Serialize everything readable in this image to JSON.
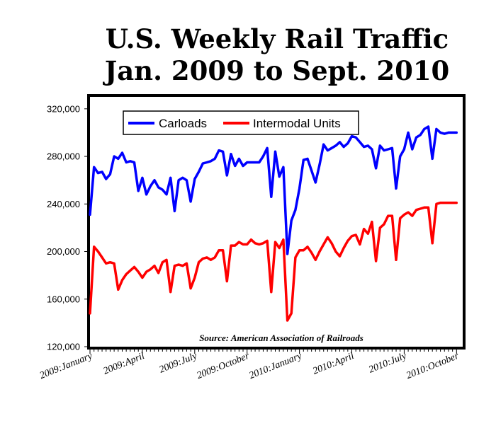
{
  "chart_data": {
    "type": "line",
    "title_lines": [
      "U.S. Weekly Rail Traffic",
      "Jan. 2009 to Sept. 2010"
    ],
    "source": "Source: American Association of Railroads",
    "ylim": [
      120000,
      330000
    ],
    "yticks": [
      120000,
      160000,
      200000,
      240000,
      280000,
      320000
    ],
    "ytick_labels": [
      "120,000",
      "160,000",
      "200,000",
      "240,000",
      "280,000",
      "320,000"
    ],
    "xlim": [
      0,
      92
    ],
    "xticks": [
      0,
      13,
      26,
      39,
      52,
      65,
      78,
      91
    ],
    "xtick_labels": [
      "2009:January",
      "2009:April",
      "2009:July",
      "2009:October",
      "2010:January",
      "2010:April",
      "2010:July",
      "2010:October"
    ],
    "legend_position": "top-left",
    "grid": false,
    "series": [
      {
        "name": "Carloads",
        "color": "#0000ff",
        "x": [
          0,
          1,
          2,
          3,
          4,
          5,
          6,
          7,
          8,
          9,
          10,
          11,
          12,
          13,
          14,
          15,
          16,
          17,
          18,
          19,
          20,
          21,
          22,
          23,
          24,
          25,
          26,
          27,
          28,
          29,
          30,
          31,
          32,
          33,
          34,
          35,
          36,
          37,
          38,
          39,
          40,
          41,
          42,
          43,
          44,
          45,
          46,
          47,
          48,
          49,
          50,
          51,
          52,
          53,
          54,
          55,
          56,
          57,
          58,
          59,
          60,
          61,
          62,
          63,
          64,
          65,
          66,
          67,
          68,
          69,
          70,
          71,
          72,
          73,
          74,
          75,
          76,
          77,
          78,
          79,
          80,
          81,
          82,
          83,
          84,
          85,
          86,
          87,
          88,
          89,
          90,
          91
        ],
        "values": [
          231000,
          271000,
          266000,
          267000,
          261000,
          265000,
          280000,
          278000,
          283000,
          275000,
          276000,
          275000,
          251000,
          262000,
          248000,
          255000,
          260000,
          254000,
          252000,
          248000,
          262000,
          234000,
          260000,
          262000,
          260000,
          242000,
          261000,
          267000,
          274000,
          275000,
          276000,
          278000,
          285000,
          284000,
          264000,
          282000,
          272000,
          278000,
          272000,
          275000,
          275000,
          275000,
          275000,
          280000,
          287000,
          246000,
          284000,
          263000,
          271000,
          198000,
          226000,
          235000,
          253000,
          277000,
          278000,
          268000,
          258000,
          273000,
          290000,
          285000,
          287000,
          289000,
          292000,
          288000,
          291000,
          297000,
          296000,
          292000,
          288000,
          289000,
          286000,
          270000,
          289000,
          285000,
          286000,
          287000,
          253000,
          280000,
          286000,
          300000,
          286000,
          296000,
          298000,
          303000,
          305000,
          278000,
          303000,
          300000,
          299000,
          300000,
          300000,
          300000
        ]
      },
      {
        "name": "Intermodal Units",
        "color": "#ff0000",
        "x": [
          0,
          1,
          2,
          3,
          4,
          5,
          6,
          7,
          8,
          9,
          10,
          11,
          12,
          13,
          14,
          15,
          16,
          17,
          18,
          19,
          20,
          21,
          22,
          23,
          24,
          25,
          26,
          27,
          28,
          29,
          30,
          31,
          32,
          33,
          34,
          35,
          36,
          37,
          38,
          39,
          40,
          41,
          42,
          43,
          44,
          45,
          46,
          47,
          48,
          49,
          50,
          51,
          52,
          53,
          54,
          55,
          56,
          57,
          58,
          59,
          60,
          61,
          62,
          63,
          64,
          65,
          66,
          67,
          68,
          69,
          70,
          71,
          72,
          73,
          74,
          75,
          76,
          77,
          78,
          79,
          80,
          81,
          82,
          83,
          84,
          85,
          86,
          87,
          88,
          89,
          90,
          91
        ],
        "values": [
          148000,
          204000,
          200000,
          195000,
          190000,
          191000,
          190000,
          168000,
          176000,
          181000,
          184000,
          187000,
          183000,
          178000,
          183000,
          185000,
          188000,
          182000,
          191000,
          193000,
          166000,
          188000,
          189000,
          188000,
          190000,
          169000,
          178000,
          191000,
          194000,
          195000,
          193000,
          195000,
          201000,
          201000,
          175000,
          205000,
          205000,
          208000,
          206000,
          206000,
          210000,
          207000,
          206000,
          207000,
          209000,
          166000,
          208000,
          203000,
          210000,
          142000,
          148000,
          195000,
          201000,
          201000,
          204000,
          199000,
          193000,
          200000,
          206000,
          212000,
          207000,
          200000,
          196000,
          203000,
          209000,
          213000,
          214000,
          206000,
          219000,
          215000,
          225000,
          192000,
          220000,
          223000,
          230000,
          230000,
          193000,
          228000,
          231000,
          233000,
          230000,
          235000,
          236000,
          237000,
          237000,
          207000,
          240000,
          241000,
          241000,
          241000,
          241000,
          241000
        ]
      }
    ]
  }
}
